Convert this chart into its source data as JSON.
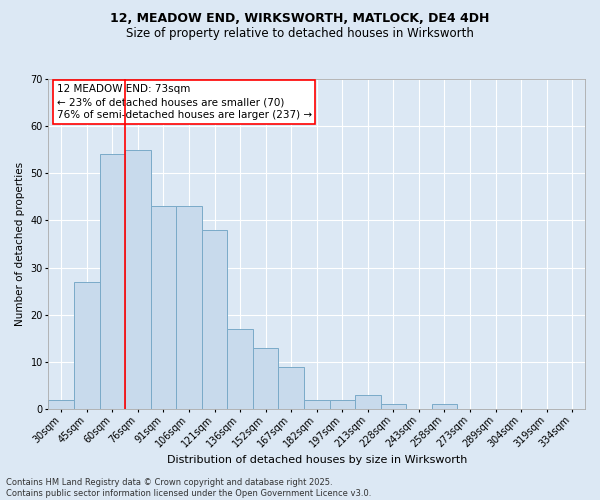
{
  "title1": "12, MEADOW END, WIRKSWORTH, MATLOCK, DE4 4DH",
  "title2": "Size of property relative to detached houses in Wirksworth",
  "xlabel": "Distribution of detached houses by size in Wirksworth",
  "ylabel": "Number of detached properties",
  "categories": [
    "30sqm",
    "45sqm",
    "60sqm",
    "76sqm",
    "91sqm",
    "106sqm",
    "121sqm",
    "136sqm",
    "152sqm",
    "167sqm",
    "182sqm",
    "197sqm",
    "213sqm",
    "228sqm",
    "243sqm",
    "258sqm",
    "273sqm",
    "289sqm",
    "304sqm",
    "319sqm",
    "334sqm"
  ],
  "values": [
    2,
    27,
    54,
    55,
    43,
    43,
    38,
    17,
    13,
    9,
    2,
    2,
    3,
    1,
    0,
    1,
    0,
    0,
    0,
    0,
    0
  ],
  "bar_color": "#c8daec",
  "bar_edge_color": "#7aaac8",
  "vline_color": "red",
  "vline_index": 3,
  "annotation_text": "12 MEADOW END: 73sqm\n← 23% of detached houses are smaller (70)\n76% of semi-detached houses are larger (237) →",
  "annotation_box_color": "white",
  "annotation_box_edge_color": "red",
  "ylim": [
    0,
    70
  ],
  "yticks": [
    0,
    10,
    20,
    30,
    40,
    50,
    60,
    70
  ],
  "footer_text": "Contains HM Land Registry data © Crown copyright and database right 2025.\nContains public sector information licensed under the Open Government Licence v3.0.",
  "bg_color": "#dce8f4",
  "plot_bg_color": "#dce8f4",
  "grid_color": "white",
  "title1_fontsize": 9,
  "title2_fontsize": 8.5,
  "xlabel_fontsize": 8,
  "ylabel_fontsize": 7.5,
  "tick_fontsize": 7,
  "footer_fontsize": 6,
  "annotation_fontsize": 7.5
}
